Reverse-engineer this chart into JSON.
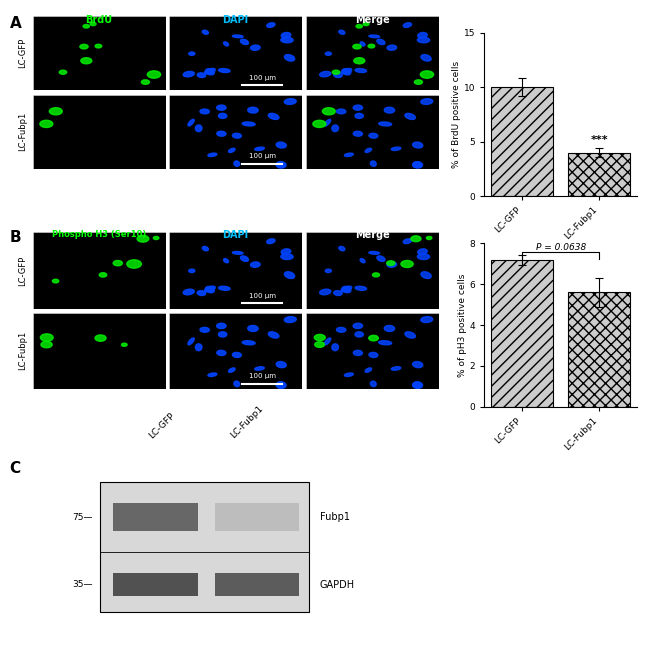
{
  "panel_A": {
    "label": "A",
    "channels": [
      "BrdU",
      "DAPI",
      "Merge"
    ],
    "channel_colors": [
      "#00ff00",
      "#00bfff",
      "#ffffff"
    ],
    "rows": [
      "LC-GFP",
      "LC-Fubp1"
    ],
    "scale_bar_text": "100 μm",
    "bar_chart": {
      "categories": [
        "LC-GFP",
        "LC-Fubp1"
      ],
      "values": [
        10.0,
        4.0
      ],
      "errors": [
        0.8,
        0.4
      ],
      "ylabel": "% of BrdU positive cells",
      "ylim": [
        0,
        15
      ],
      "yticks": [
        0,
        5,
        10,
        15
      ],
      "significance": "***",
      "hatch_bar0": "///",
      "hatch_bar1": "xxx"
    }
  },
  "panel_B": {
    "label": "B",
    "channels": [
      "Phospho H3 (Ser10)",
      "DAPI",
      "Merge"
    ],
    "channel_colors": [
      "#00ff00",
      "#00bfff",
      "#ffffff"
    ],
    "rows": [
      "LC-GFP",
      "LC-Fubp1"
    ],
    "scale_bar_text": "100 μm",
    "bar_chart": {
      "categories": [
        "LC-GFP",
        "LC-Fubp1"
      ],
      "values": [
        7.2,
        5.6
      ],
      "errors": [
        0.25,
        0.7
      ],
      "ylabel": "% of pH3 positive cells",
      "ylim": [
        0,
        8
      ],
      "yticks": [
        0,
        2,
        4,
        6,
        8
      ],
      "pvalue": "P = 0.0638",
      "hatch_bar0": "///",
      "hatch_bar1": "xxx"
    }
  },
  "panel_C": {
    "label": "C",
    "bands": [
      "Fubp1",
      "GAPDH"
    ],
    "lanes": [
      "LC-GFP",
      "LC-Fubp1"
    ],
    "markers": [
      75,
      35
    ],
    "band_intensities_fubp1": [
      0.7,
      0.3
    ],
    "band_intensities_gapdh": [
      0.8,
      0.75
    ]
  },
  "fig_bg": "#ffffff"
}
